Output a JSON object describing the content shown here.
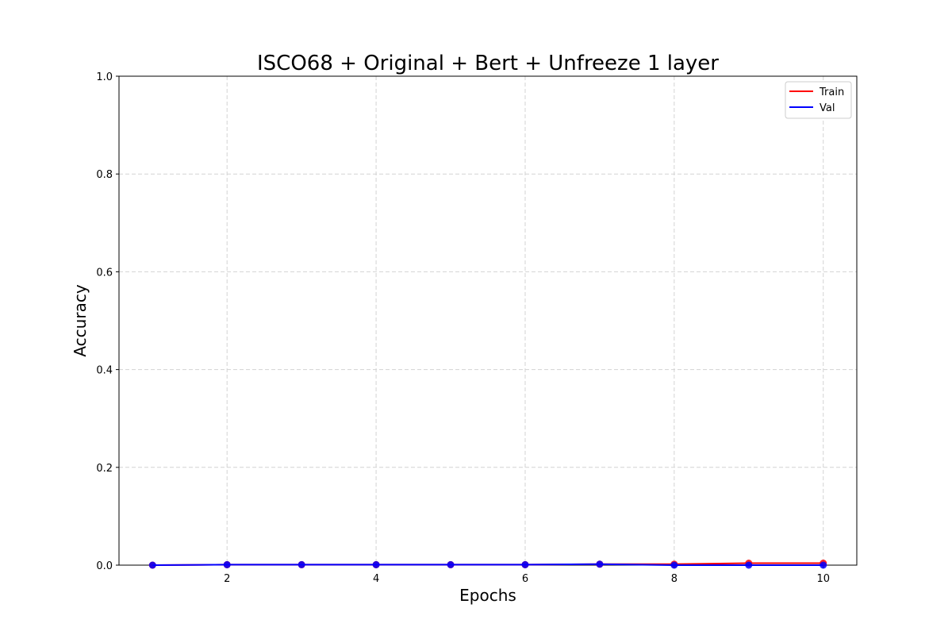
{
  "chart_data": {
    "type": "line",
    "title": "ISCO68 + Original + Bert + Unfreeze 1 layer",
    "xlabel": "Epochs",
    "ylabel": "Accuracy",
    "x": [
      1,
      2,
      3,
      4,
      5,
      6,
      7,
      8,
      9,
      10
    ],
    "xlim": [
      0.55,
      10.45
    ],
    "ylim": [
      0,
      1.0
    ],
    "xticks": [
      2,
      4,
      6,
      8,
      10
    ],
    "yticks": [
      0.0,
      0.2,
      0.4,
      0.6,
      0.8,
      1.0
    ],
    "xtick_labels": [
      "2",
      "4",
      "6",
      "8",
      "10"
    ],
    "ytick_labels": [
      "0.0",
      "0.2",
      "0.4",
      "0.6",
      "0.8",
      "1.0"
    ],
    "grid": true,
    "legend_position": "top-right",
    "series": [
      {
        "name": "Train",
        "color": "#ff0000",
        "values": [
          0.0,
          0.001,
          0.001,
          0.001,
          0.001,
          0.001,
          0.002,
          0.002,
          0.004,
          0.004
        ]
      },
      {
        "name": "Val",
        "color": "#0000ff",
        "values": [
          0.0,
          0.001,
          0.001,
          0.001,
          0.001,
          0.001,
          0.002,
          0.0,
          0.0,
          0.0
        ]
      }
    ]
  }
}
